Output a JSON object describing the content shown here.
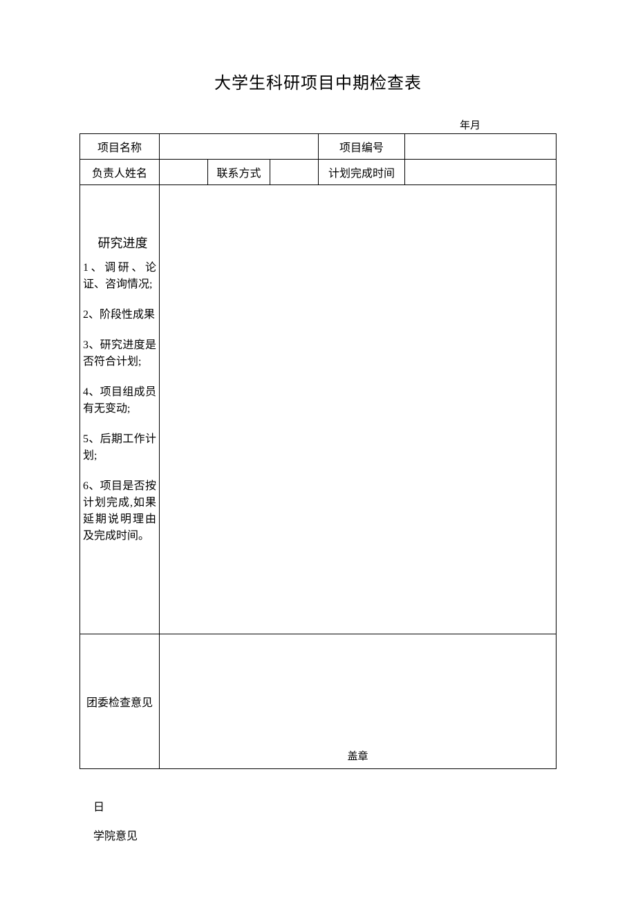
{
  "document": {
    "title": "大学生科研项目中期检查表",
    "date_label": "年月",
    "background_color": "#ffffff",
    "border_color": "#000000",
    "text_color": "#000000",
    "title_fontsize": 24,
    "body_fontsize": 16,
    "small_fontsize": 15
  },
  "table": {
    "row1": {
      "project_name_label": "项目名称",
      "project_name_value": "",
      "project_number_label": "项目编号",
      "project_number_value": ""
    },
    "row2": {
      "person_name_label": "负责人姓名",
      "person_name_value": "",
      "contact_label": "联系方式",
      "contact_value": "",
      "plan_time_label": "计划完成时间",
      "plan_time_value": ""
    },
    "progress": {
      "header": "研究进度",
      "items": [
        "1、调研、论证、咨询情况;",
        "2、阶段性成果",
        "3、研究进度是否符合计划;",
        "4、项目组成员有无变动;",
        "5、后期工作计划;",
        "6、项目是否按计划完成,如果延期说明理由及完成时间。"
      ],
      "content_value": ""
    },
    "committee": {
      "label": "团委检查意见",
      "content_value": "",
      "seal_label": "盖章"
    }
  },
  "below": {
    "day_label": "日",
    "college_opinion_label": "学院意见"
  }
}
